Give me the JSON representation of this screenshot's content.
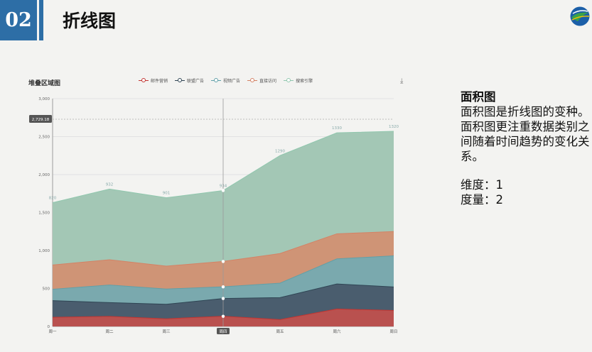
{
  "header": {
    "section_number": "02",
    "title": "折线图",
    "accent_color": "#2d6ea6"
  },
  "side_panel": {
    "heading": "面积图",
    "line1": "面积图是折线图的变种。",
    "line2": "面积图更注重数据类别之间随着时间趋势的变化关系。",
    "dimension": "维度：1",
    "measure": "度量：2"
  },
  "chart_data": {
    "type": "area",
    "stacked": true,
    "title": "堆叠区域图",
    "categories": [
      "周一",
      "周二",
      "周三",
      "周四",
      "周五",
      "周六",
      "周日"
    ],
    "ylim": [
      0,
      3000
    ],
    "yticks": [
      0,
      500,
      1000,
      1500,
      2000,
      2500,
      3000
    ],
    "ytick_labels": [
      "0",
      "500",
      "1,000",
      "1,500",
      "2,000",
      "2,500",
      "3,000"
    ],
    "grid": true,
    "legend_position": "top",
    "series": [
      {
        "name": "邮件营销",
        "values": [
          120,
          132,
          101,
          134,
          90,
          230,
          210
        ],
        "color": "#c23531",
        "fill": "#b9514f"
      },
      {
        "name": "联盟广告",
        "values": [
          220,
          182,
          191,
          234,
          290,
          330,
          310
        ],
        "color": "#2f4554",
        "fill": "#4a5d6e"
      },
      {
        "name": "视频广告",
        "values": [
          150,
          232,
          201,
          154,
          190,
          330,
          410
        ],
        "color": "#61a0a8",
        "fill": "#7aa9ae"
      },
      {
        "name": "直接访问",
        "values": [
          320,
          332,
          301,
          334,
          390,
          330,
          320
        ],
        "color": "#d48265",
        "fill": "#cf9476"
      },
      {
        "name": "搜索引擎",
        "values": [
          820,
          932,
          901,
          934,
          1290,
          1330,
          1320
        ],
        "color": "#91c7ae",
        "fill": "#a3c7b5"
      }
    ],
    "top_labels": [
      "820",
      "932",
      "901",
      "934",
      "1290",
      "1330",
      "1320"
    ],
    "tooltip": {
      "category": "周四",
      "value_label": "2,729.18",
      "value": 2729.18
    }
  }
}
